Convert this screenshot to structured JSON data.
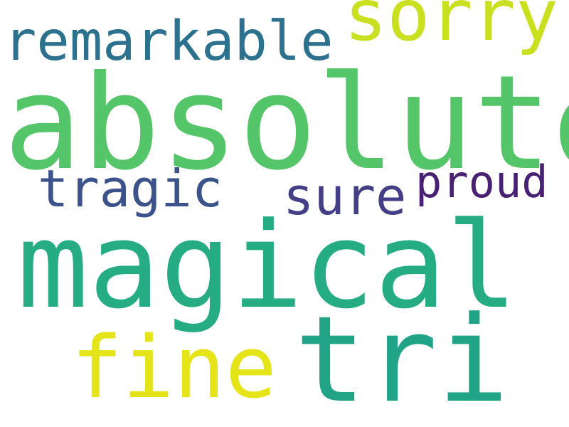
{
  "wordcloud": {
    "words": [
      {
        "text": "absolute",
        "color": "#54c568"
      },
      {
        "text": "magical",
        "color": "#25ac82"
      },
      {
        "text": "tri",
        "color": "#20a386"
      },
      {
        "text": "fine",
        "color": "#e5e419"
      },
      {
        "text": "sorry",
        "color": "#c8e020"
      },
      {
        "text": "remarkable",
        "color": "#2c718e"
      },
      {
        "text": "tragic",
        "color": "#3b528b"
      },
      {
        "text": "sure",
        "color": "#433e85"
      },
      {
        "text": "proud",
        "color": "#482173"
      }
    ]
  }
}
